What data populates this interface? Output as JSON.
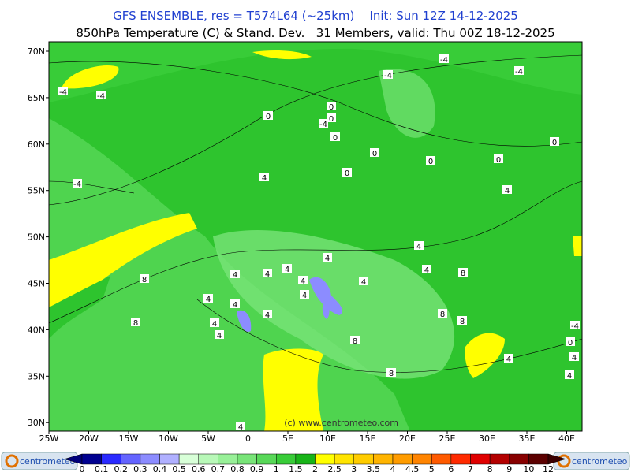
{
  "header": {
    "line1": "GFS ENSEMBLE, res = T574L64 (~25km)    Init: Sun 12Z 14-12-2025",
    "line2": "850hPa Temperature (C) & Stand. Dev.   31 Members, valid: Thu 00Z 18-12-2025"
  },
  "map": {
    "lat_labels": [
      "70N",
      "65N",
      "60N",
      "55N",
      "50N",
      "45N",
      "40N",
      "35N",
      "30N"
    ],
    "lon_labels": [
      "25W",
      "20W",
      "15W",
      "10W",
      "5W",
      "0",
      "5E",
      "10E",
      "15E",
      "20E",
      "25E",
      "30E",
      "35E",
      "40E"
    ],
    "contour_labels": [
      "-4",
      "-4",
      "-4",
      "0",
      "4",
      "8",
      "8",
      "-4",
      "-4",
      "-4",
      "0",
      "-4",
      "0",
      "0",
      "0",
      "0",
      "0",
      "0",
      "0",
      "4",
      "4",
      "4",
      "4",
      "4",
      "4",
      "4",
      "4",
      "4",
      "4",
      "8",
      "4",
      "4",
      "4",
      "4",
      "4",
      "8",
      "8",
      "8",
      "8",
      "4",
      "-4",
      "0",
      "4",
      "4",
      "4"
    ],
    "watermark": "(c) www.centrometeo.com"
  },
  "colorbar": {
    "labels": [
      "0",
      "0.1",
      "0.2",
      "0.3",
      "0.4",
      "0.5",
      "0.6",
      "0.7",
      "0.8",
      "0.9",
      "1",
      "1.5",
      "2",
      "2.5",
      "3",
      "3.5",
      "4",
      "4.5",
      "5",
      "6",
      "7",
      "8",
      "9",
      "10",
      "12"
    ],
    "colors": [
      "#00007a",
      "#000090",
      "#2a2aff",
      "#6464ff",
      "#8c8cff",
      "#b0b0ff",
      "#d8ffd8",
      "#b8f8b8",
      "#98f098",
      "#78e478",
      "#58d858",
      "#38cc38",
      "#18b418",
      "#ffff00",
      "#ffe400",
      "#ffcc00",
      "#ffb400",
      "#ff9c00",
      "#ff8400",
      "#ff5a00",
      "#ff2a00",
      "#e00000",
      "#b40000",
      "#880000",
      "#5c0000",
      "#3a0000"
    ]
  },
  "logos": [
    "centrometeo",
    "centrometeo"
  ]
}
